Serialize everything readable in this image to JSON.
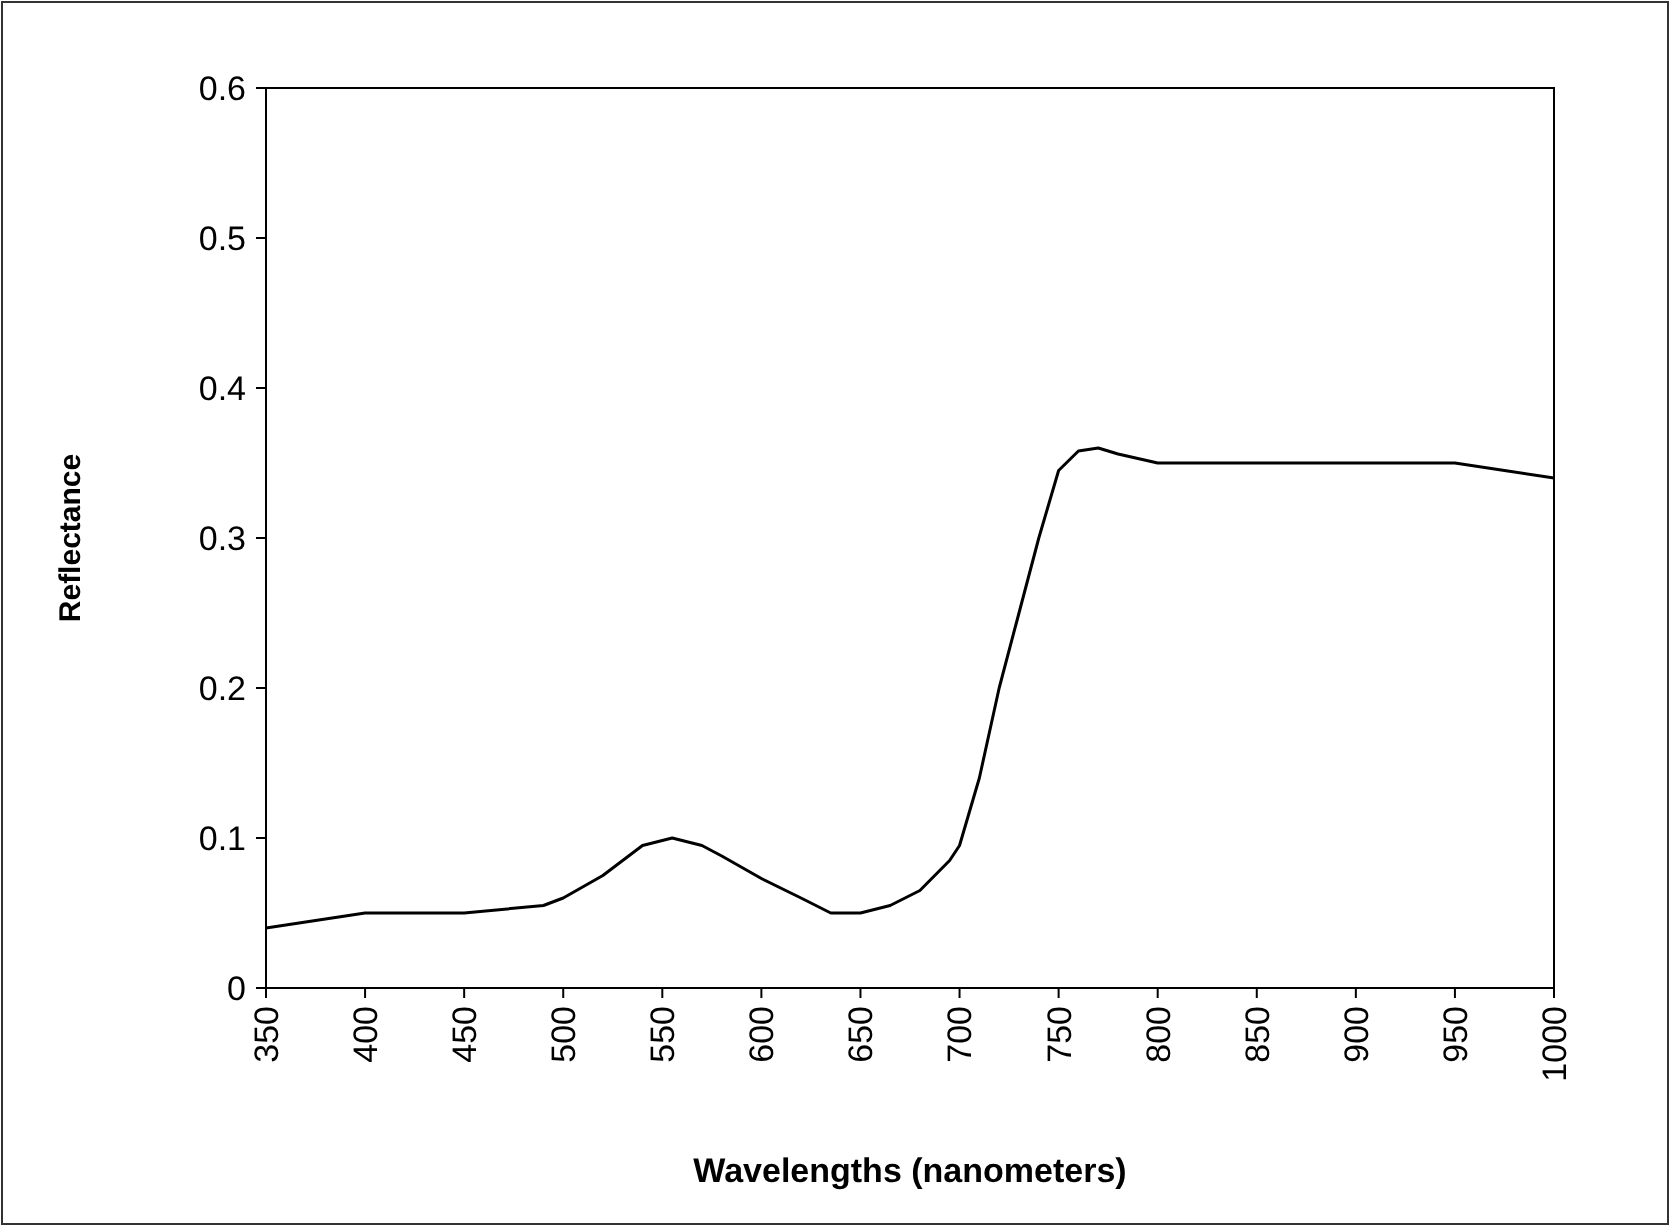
{
  "chart_data": {
    "type": "line",
    "xlabel": "Wavelengths (nanometers)",
    "ylabel": "Reflectance",
    "x": [
      350,
      375,
      400,
      450,
      490,
      500,
      520,
      540,
      555,
      570,
      580,
      600,
      620,
      635,
      650,
      665,
      680,
      695,
      700,
      710,
      720,
      730,
      740,
      750,
      760,
      770,
      780,
      800,
      850,
      900,
      950,
      975,
      1000
    ],
    "series": [
      {
        "color": "#000000",
        "values": [
          0.04,
          0.045,
          0.05,
          0.05,
          0.055,
          0.06,
          0.075,
          0.095,
          0.1,
          0.095,
          0.088,
          0.073,
          0.06,
          0.05,
          0.05,
          0.055,
          0.065,
          0.085,
          0.095,
          0.14,
          0.2,
          0.25,
          0.3,
          0.345,
          0.358,
          0.36,
          0.356,
          0.35,
          0.35,
          0.35,
          0.35,
          0.345,
          0.34
        ]
      }
    ],
    "xlim": [
      350,
      1000
    ],
    "xticks": [
      350,
      400,
      450,
      500,
      550,
      600,
      650,
      700,
      750,
      800,
      850,
      900,
      950,
      1000
    ],
    "ylim": [
      0,
      0.6
    ],
    "yticks": [
      0,
      0.1,
      0.2,
      0.3,
      0.4,
      0.5,
      0.6
    ],
    "grid": false,
    "marker": "none",
    "line_style": "solid"
  }
}
